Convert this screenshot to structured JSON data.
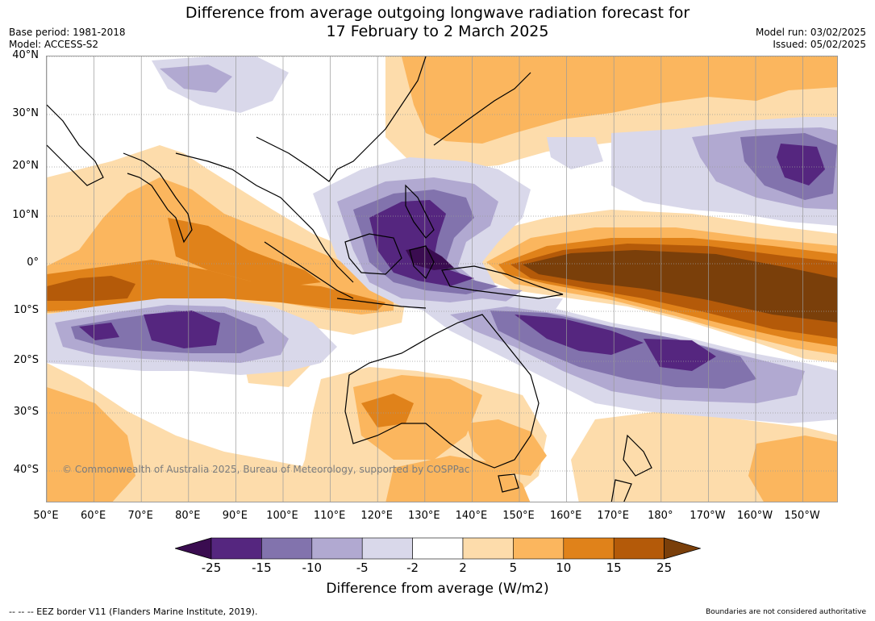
{
  "title_line1": "Difference from average outgoing longwave radiation forecast for",
  "title_line2": "17 February to 2 March 2025",
  "base_period": "Base period: 1981-2018",
  "model": "Model: ACCESS-S2",
  "model_run": "Model run: 03/02/2025",
  "issued": "Issued: 05/02/2025",
  "lat_labels": [
    "40°N",
    "30°N",
    "20°N",
    "10°N",
    "0°",
    "10°S",
    "20°S",
    "30°S",
    "40°S"
  ],
  "lon_labels": [
    "50°E",
    "60°E",
    "70°E",
    "80°E",
    "90°E",
    "100°E",
    "110°E",
    "120°E",
    "130°E",
    "140°E",
    "150°E",
    "160°E",
    "170°E",
    "180°",
    "170°W",
    "160°W",
    "150°W"
  ],
  "copyright": "© Commonwealth of Australia 2025, Bureau of Meteorology, supported by COSPPac",
  "colorbar": {
    "title": "Difference from average (W/m2)",
    "labels": [
      "-25",
      "-15",
      "-10",
      "-5",
      "-2",
      "2",
      "5",
      "10",
      "15",
      "25"
    ],
    "colors": [
      "#3a0c50",
      "#55267f",
      "#8273ad",
      "#b1a9d1",
      "#d9d8ea",
      "#ffffff",
      "#fddcab",
      "#fbb65e",
      "#e0821a",
      "#b45a09",
      "#7a3f0a"
    ]
  },
  "footer_left": "--  --  -- EEZ border V11 (Flanders Marine Institute, 2019).",
  "footer_right": "Boundaries are not considered authoritative"
}
